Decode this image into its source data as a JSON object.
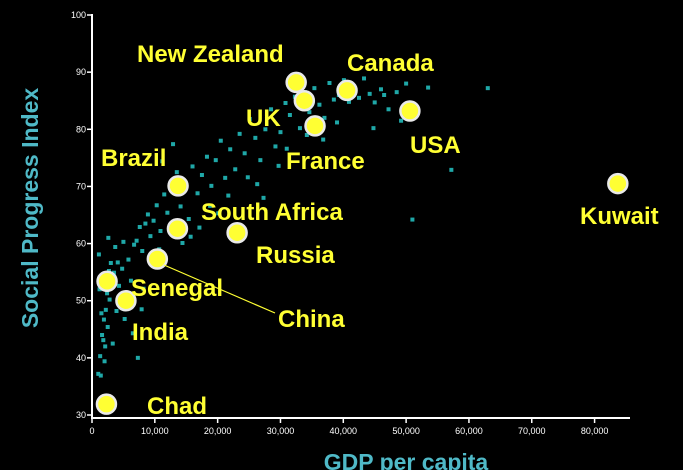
{
  "chart_data": {
    "type": "scatter",
    "xlabel": "GDP per capita",
    "ylabel": "Social Progress Index",
    "xlim": [
      0,
      85000
    ],
    "ylim": [
      30,
      100
    ],
    "x_ticks": [
      0,
      10000,
      20000,
      30000,
      40000,
      50000,
      60000,
      70000,
      80000
    ],
    "x_tick_labels": [
      "0",
      "10,000",
      "20,000",
      "30,000",
      "40,000",
      "50,000",
      "60,000",
      "70,000",
      "80,000"
    ],
    "y_ticks": [
      30,
      40,
      50,
      60,
      70,
      80,
      90,
      100
    ],
    "y_tick_labels": [
      "30",
      "40",
      "50",
      "60",
      "70",
      "80",
      "90",
      "100"
    ],
    "colors": {
      "background": "#000000",
      "points": "#1fa8a8",
      "highlight": "#ffff33",
      "axis_title": "#4fb9c7"
    },
    "highlighted": [
      {
        "label": "New Zealand",
        "x": 32500,
        "y": 88.2
      },
      {
        "label": "UK",
        "x": 33800,
        "y": 85.0
      },
      {
        "label": "Canada",
        "x": 40600,
        "y": 86.8
      },
      {
        "label": "France",
        "x": 35500,
        "y": 80.6
      },
      {
        "label": "USA",
        "x": 50600,
        "y": 83.2
      },
      {
        "label": "Kuwait",
        "x": 83700,
        "y": 70.5
      },
      {
        "label": "Brazil",
        "x": 13700,
        "y": 70.1
      },
      {
        "label": "South Africa",
        "x": 13600,
        "y": 62.6
      },
      {
        "label": "Russia",
        "x": 23100,
        "y": 61.9
      },
      {
        "label": "China",
        "x": 10400,
        "y": 57.3
      },
      {
        "label": "Senegal",
        "x": 2400,
        "y": 53.4
      },
      {
        "label": "India",
        "x": 5400,
        "y": 50.0
      },
      {
        "label": "Chad",
        "x": 2300,
        "y": 31.9
      }
    ],
    "points": [
      [
        1000,
        37.2
      ],
      [
        1300,
        40.3
      ],
      [
        1600,
        44.0
      ],
      [
        1900,
        46.7
      ],
      [
        2200,
        48.4
      ],
      [
        2500,
        45.4
      ],
      [
        2800,
        50.2
      ],
      [
        3100,
        53.3
      ],
      [
        1200,
        52.0
      ],
      [
        1500,
        47.8
      ],
      [
        1800,
        43.1
      ],
      [
        2100,
        42.0
      ],
      [
        2400,
        51.3
      ],
      [
        2700,
        55.2
      ],
      [
        3000,
        56.6
      ],
      [
        3500,
        54.9
      ],
      [
        3900,
        48.2
      ],
      [
        4300,
        52.6
      ],
      [
        4800,
        55.6
      ],
      [
        5200,
        46.8
      ],
      [
        5800,
        57.2
      ],
      [
        6200,
        53.5
      ],
      [
        6700,
        59.8
      ],
      [
        7100,
        60.5
      ],
      [
        7600,
        62.9
      ],
      [
        8000,
        58.7
      ],
      [
        8500,
        63.5
      ],
      [
        8900,
        65.1
      ],
      [
        9300,
        61.3
      ],
      [
        9800,
        64.0
      ],
      [
        10300,
        66.7
      ],
      [
        10900,
        62.2
      ],
      [
        11500,
        68.6
      ],
      [
        12000,
        65.4
      ],
      [
        12600,
        63.0
      ],
      [
        13100,
        69.7
      ],
      [
        13500,
        72.5
      ],
      [
        14100,
        66.5
      ],
      [
        14800,
        70.7
      ],
      [
        15400,
        64.3
      ],
      [
        16000,
        73.5
      ],
      [
        16800,
        68.8
      ],
      [
        17500,
        72.0
      ],
      [
        18300,
        75.2
      ],
      [
        19000,
        70.1
      ],
      [
        19700,
        74.6
      ],
      [
        20500,
        78.0
      ],
      [
        21200,
        71.5
      ],
      [
        22000,
        76.5
      ],
      [
        22800,
        73.0
      ],
      [
        23500,
        79.2
      ],
      [
        24300,
        75.8
      ],
      [
        25100,
        81.8
      ],
      [
        26000,
        78.5
      ],
      [
        26800,
        74.6
      ],
      [
        27600,
        80.0
      ],
      [
        28500,
        83.5
      ],
      [
        29200,
        77.0
      ],
      [
        30000,
        79.5
      ],
      [
        30800,
        84.6
      ],
      [
        31500,
        82.5
      ],
      [
        32300,
        85.7
      ],
      [
        33100,
        80.2
      ],
      [
        33900,
        86.5
      ],
      [
        34600,
        83.0
      ],
      [
        35400,
        87.2
      ],
      [
        36200,
        84.3
      ],
      [
        37000,
        82.0
      ],
      [
        37800,
        88.1
      ],
      [
        38500,
        85.2
      ],
      [
        39300,
        86.0
      ],
      [
        40100,
        88.6
      ],
      [
        40900,
        84.8
      ],
      [
        41700,
        87.5
      ],
      [
        42500,
        85.5
      ],
      [
        43300,
        88.9
      ],
      [
        44200,
        86.2
      ],
      [
        45000,
        84.7
      ],
      [
        46000,
        87.0
      ],
      [
        47200,
        83.5
      ],
      [
        48500,
        86.5
      ],
      [
        50000,
        88.0
      ],
      [
        51000,
        64.2
      ],
      [
        53500,
        87.3
      ],
      [
        57200,
        72.9
      ],
      [
        63000,
        87.2
      ],
      [
        1100,
        58.1
      ],
      [
        2000,
        39.4
      ],
      [
        3300,
        42.5
      ],
      [
        4100,
        56.7
      ],
      [
        5000,
        60.3
      ],
      [
        6500,
        44.3
      ],
      [
        7300,
        40.0
      ],
      [
        8200,
        52.1
      ],
      [
        9100,
        57.6
      ],
      [
        11200,
        74.4
      ],
      [
        12900,
        77.4
      ],
      [
        15700,
        61.2
      ],
      [
        18800,
        66.6
      ],
      [
        21700,
        68.4
      ],
      [
        24800,
        71.6
      ],
      [
        27300,
        68.0
      ],
      [
        29700,
        73.6
      ],
      [
        36800,
        78.2
      ],
      [
        44800,
        80.2
      ],
      [
        49200,
        81.5
      ],
      [
        1400,
        36.9
      ],
      [
        2600,
        61.0
      ],
      [
        3700,
        59.4
      ],
      [
        6000,
        50.6
      ],
      [
        7900,
        48.5
      ],
      [
        10700,
        59.0
      ],
      [
        14400,
        60.1
      ],
      [
        17100,
        62.8
      ],
      [
        20100,
        65.3
      ],
      [
        26300,
        70.4
      ],
      [
        31000,
        76.6
      ],
      [
        34200,
        79.0
      ],
      [
        39000,
        81.2
      ],
      [
        46500,
        86.0
      ]
    ]
  }
}
